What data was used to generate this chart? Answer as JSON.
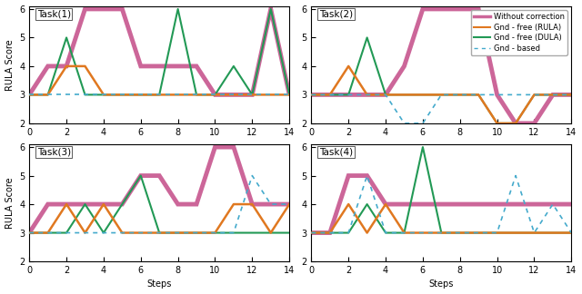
{
  "tasks": [
    "Task(1)",
    "Task(2)",
    "Task(3)",
    "Task(4)"
  ],
  "xlim": [
    0,
    14
  ],
  "ylim": [
    2,
    6.1
  ],
  "yticks": [
    2,
    3,
    4,
    5,
    6
  ],
  "xticks": [
    0,
    2,
    4,
    6,
    8,
    10,
    12,
    14
  ],
  "xlabel": "Steps",
  "ylabel": "RULA Score",
  "colors": {
    "without_correction": "#cc6699",
    "grad_free_rula": "#e07820",
    "grad_free_dula": "#229955",
    "grad_based": "#44aacc"
  },
  "legend_labels": [
    "Without correction",
    "Gnd - free (RULA)",
    "Gnd - free (DULA)",
    "Gnd - based"
  ],
  "task1": {
    "without_correction": [
      [
        0,
        3
      ],
      [
        1,
        4
      ],
      [
        2,
        4
      ],
      [
        3,
        6
      ],
      [
        4,
        6
      ],
      [
        5,
        6
      ],
      [
        6,
        4
      ],
      [
        7,
        4
      ],
      [
        8,
        4
      ],
      [
        9,
        4
      ],
      [
        10,
        3
      ],
      [
        11,
        3
      ],
      [
        12,
        3
      ],
      [
        13,
        6
      ],
      [
        14,
        3
      ]
    ],
    "grad_free_rula": [
      [
        0,
        3
      ],
      [
        1,
        3
      ],
      [
        2,
        4
      ],
      [
        3,
        4
      ],
      [
        4,
        3
      ],
      [
        5,
        3
      ],
      [
        6,
        3
      ],
      [
        7,
        3
      ],
      [
        8,
        3
      ],
      [
        9,
        3
      ],
      [
        10,
        3
      ],
      [
        11,
        3
      ],
      [
        12,
        3
      ],
      [
        13,
        3
      ],
      [
        14,
        3
      ]
    ],
    "grad_free_dula": [
      [
        0,
        3
      ],
      [
        1,
        3
      ],
      [
        2,
        5
      ],
      [
        3,
        3
      ],
      [
        4,
        3
      ],
      [
        5,
        3
      ],
      [
        6,
        3
      ],
      [
        7,
        3
      ],
      [
        8,
        6
      ],
      [
        9,
        3
      ],
      [
        10,
        3
      ],
      [
        11,
        4
      ],
      [
        12,
        3
      ],
      [
        13,
        6
      ],
      [
        14,
        3
      ]
    ],
    "grad_based": [
      [
        0,
        3
      ],
      [
        2,
        3
      ],
      [
        4,
        3
      ],
      [
        6,
        3
      ],
      [
        8,
        3
      ],
      [
        10,
        3
      ],
      [
        12,
        3
      ],
      [
        14,
        3
      ]
    ]
  },
  "task2": {
    "without_correction": [
      [
        0,
        3
      ],
      [
        1,
        3
      ],
      [
        2,
        3
      ],
      [
        3,
        3
      ],
      [
        4,
        3
      ],
      [
        5,
        4
      ],
      [
        6,
        6
      ],
      [
        7,
        6
      ],
      [
        8,
        6
      ],
      [
        9,
        6
      ],
      [
        10,
        3
      ],
      [
        11,
        2
      ],
      [
        12,
        2
      ],
      [
        13,
        3
      ],
      [
        14,
        3
      ]
    ],
    "grad_free_rula": [
      [
        0,
        3
      ],
      [
        1,
        3
      ],
      [
        2,
        4
      ],
      [
        3,
        3
      ],
      [
        4,
        3
      ],
      [
        5,
        3
      ],
      [
        6,
        3
      ],
      [
        7,
        3
      ],
      [
        8,
        3
      ],
      [
        9,
        3
      ],
      [
        10,
        2
      ],
      [
        11,
        2
      ],
      [
        12,
        3
      ],
      [
        13,
        3
      ],
      [
        14,
        3
      ]
    ],
    "grad_free_dula": [
      [
        0,
        3
      ],
      [
        1,
        3
      ],
      [
        2,
        3
      ],
      [
        3,
        5
      ],
      [
        4,
        3
      ],
      [
        5,
        3
      ],
      [
        6,
        3
      ],
      [
        7,
        3
      ],
      [
        8,
        3
      ],
      [
        9,
        3
      ],
      [
        10,
        2
      ],
      [
        11,
        2
      ],
      [
        12,
        3
      ],
      [
        13,
        3
      ],
      [
        14,
        3
      ]
    ],
    "grad_based": [
      [
        0,
        3
      ],
      [
        1,
        3
      ],
      [
        2,
        3
      ],
      [
        3,
        3
      ],
      [
        4,
        3
      ],
      [
        5,
        2
      ],
      [
        6,
        2
      ],
      [
        7,
        3
      ],
      [
        8,
        3
      ],
      [
        9,
        3
      ],
      [
        10,
        3
      ],
      [
        11,
        3
      ],
      [
        12,
        3
      ],
      [
        13,
        3
      ],
      [
        14,
        3
      ]
    ]
  },
  "task3": {
    "without_correction": [
      [
        0,
        3
      ],
      [
        1,
        4
      ],
      [
        2,
        4
      ],
      [
        3,
        4
      ],
      [
        4,
        4
      ],
      [
        5,
        4
      ],
      [
        6,
        5
      ],
      [
        7,
        5
      ],
      [
        8,
        4
      ],
      [
        9,
        4
      ],
      [
        10,
        6
      ],
      [
        11,
        6
      ],
      [
        12,
        4
      ],
      [
        13,
        4
      ],
      [
        14,
        4
      ]
    ],
    "grad_free_rula": [
      [
        0,
        3
      ],
      [
        1,
        3
      ],
      [
        2,
        4
      ],
      [
        3,
        3
      ],
      [
        4,
        4
      ],
      [
        5,
        3
      ],
      [
        6,
        3
      ],
      [
        7,
        3
      ],
      [
        8,
        3
      ],
      [
        9,
        3
      ],
      [
        10,
        3
      ],
      [
        11,
        4
      ],
      [
        12,
        4
      ],
      [
        13,
        3
      ],
      [
        14,
        4
      ]
    ],
    "grad_free_dula": [
      [
        0,
        3
      ],
      [
        1,
        3
      ],
      [
        2,
        3
      ],
      [
        3,
        4
      ],
      [
        4,
        3
      ],
      [
        5,
        4
      ],
      [
        6,
        5
      ],
      [
        7,
        3
      ],
      [
        8,
        3
      ],
      [
        9,
        3
      ],
      [
        10,
        3
      ],
      [
        11,
        3
      ],
      [
        12,
        3
      ],
      [
        13,
        3
      ],
      [
        14,
        3
      ]
    ],
    "grad_based": [
      [
        0,
        3
      ],
      [
        1,
        3
      ],
      [
        2,
        3
      ],
      [
        3,
        3
      ],
      [
        4,
        3
      ],
      [
        5,
        3
      ],
      [
        6,
        3
      ],
      [
        7,
        3
      ],
      [
        8,
        3
      ],
      [
        9,
        3
      ],
      [
        10,
        3
      ],
      [
        11,
        3
      ],
      [
        12,
        5
      ],
      [
        13,
        4
      ],
      [
        14,
        4
      ]
    ]
  },
  "task4": {
    "without_correction": [
      [
        0,
        3
      ],
      [
        1,
        3
      ],
      [
        2,
        5
      ],
      [
        3,
        5
      ],
      [
        4,
        4
      ],
      [
        5,
        4
      ],
      [
        6,
        4
      ],
      [
        7,
        4
      ],
      [
        8,
        4
      ],
      [
        9,
        4
      ],
      [
        10,
        4
      ],
      [
        11,
        4
      ],
      [
        12,
        4
      ],
      [
        13,
        4
      ],
      [
        14,
        4
      ]
    ],
    "grad_free_rula": [
      [
        0,
        3
      ],
      [
        1,
        3
      ],
      [
        2,
        4
      ],
      [
        3,
        3
      ],
      [
        4,
        4
      ],
      [
        5,
        3
      ],
      [
        6,
        3
      ],
      [
        7,
        3
      ],
      [
        8,
        3
      ],
      [
        9,
        3
      ],
      [
        10,
        3
      ],
      [
        11,
        3
      ],
      [
        12,
        3
      ],
      [
        13,
        3
      ],
      [
        14,
        3
      ]
    ],
    "grad_free_dula": [
      [
        0,
        3
      ],
      [
        1,
        3
      ],
      [
        2,
        3
      ],
      [
        3,
        4
      ],
      [
        4,
        3
      ],
      [
        5,
        3
      ],
      [
        6,
        6
      ],
      [
        7,
        3
      ],
      [
        8,
        3
      ],
      [
        9,
        3
      ],
      [
        10,
        3
      ],
      [
        11,
        3
      ],
      [
        12,
        3
      ],
      [
        13,
        3
      ],
      [
        14,
        3
      ]
    ],
    "grad_based": [
      [
        0,
        3
      ],
      [
        1,
        3
      ],
      [
        2,
        3
      ],
      [
        3,
        5
      ],
      [
        4,
        3
      ],
      [
        5,
        3
      ],
      [
        6,
        3
      ],
      [
        7,
        3
      ],
      [
        8,
        3
      ],
      [
        9,
        3
      ],
      [
        10,
        3
      ],
      [
        11,
        5
      ],
      [
        12,
        3
      ],
      [
        13,
        4
      ],
      [
        14,
        3
      ]
    ]
  }
}
